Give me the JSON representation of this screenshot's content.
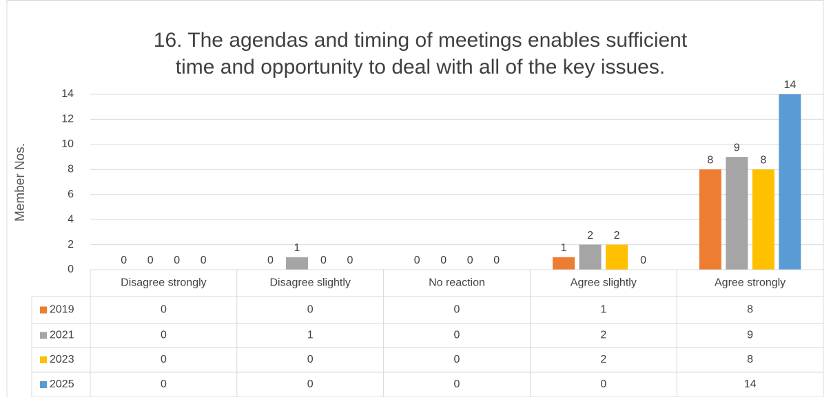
{
  "chart_data": {
    "type": "bar",
    "title": [
      "16.  The agendas and timing of meetings enables sufficient",
      "time and opportunity to deal with all of the key issues."
    ],
    "y_label": "Member Nos.",
    "categories": [
      "Disagree strongly",
      "Disagree slightly",
      "No reaction",
      "Agree slightly",
      "Agree strongly"
    ],
    "series": [
      {
        "name": "2019",
        "color": "#ed7d31",
        "values": [
          0,
          0,
          0,
          1,
          8
        ]
      },
      {
        "name": "2021",
        "color": "#a5a5a5",
        "values": [
          0,
          1,
          0,
          2,
          9
        ]
      },
      {
        "name": "2023",
        "color": "#ffc000",
        "values": [
          0,
          0,
          0,
          2,
          8
        ]
      },
      {
        "name": "2025",
        "color": "#5b9bd5",
        "values": [
          0,
          0,
          0,
          0,
          14
        ]
      }
    ],
    "ylim": [
      0,
      14
    ],
    "yticks": [
      0,
      2,
      4,
      6,
      8,
      10,
      12,
      14
    ],
    "grid": true,
    "data_table": true
  }
}
